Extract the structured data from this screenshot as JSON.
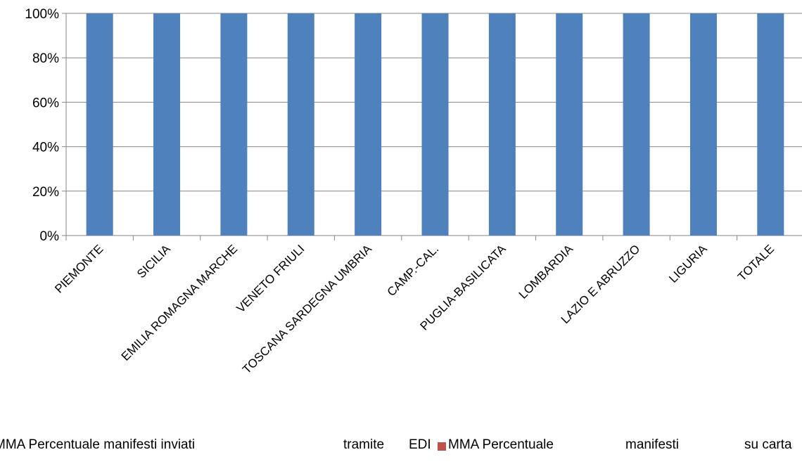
{
  "chart_data": {
    "type": "bar",
    "stacked": true,
    "categories": [
      "PIEMONTE",
      "SICILIA",
      "EMILIA ROMAGNA MARCHE",
      "VENETO FRIULI",
      "TOSCANA SARDEGNA UMBRIA",
      "CAMP.-CAL.",
      "PUGLIA-BASILICATA",
      "LOMBARDIA",
      "LAZIO E ABRUZZO",
      "LIGURIA",
      "TOTALE"
    ],
    "series": [
      {
        "name": "MMA Percentuale manifesti inviati tramite EDI",
        "color": "#4f81bd",
        "values": [
          1,
          1,
          1,
          1,
          1,
          1,
          1,
          1,
          1,
          1,
          1
        ]
      },
      {
        "name": "MMA Percentuale manifesti su carta",
        "color": "#c0504d",
        "values": [
          0,
          0,
          0,
          0,
          0,
          0,
          0,
          0,
          0,
          0,
          0
        ]
      }
    ],
    "ylim": [
      0,
      1
    ],
    "yticks": [
      "0%",
      "20%",
      "40%",
      "60%",
      "80%",
      "100%"
    ],
    "grid": true,
    "legend_position": "bottom"
  },
  "legend": {
    "item1": {
      "part1": "MMA Percentuale manifesti inviati",
      "part2": "tramite",
      "part3": "EDI"
    },
    "item2": {
      "part1": "MMA Percentuale",
      "part2": "manifesti",
      "part3": "su carta"
    }
  }
}
